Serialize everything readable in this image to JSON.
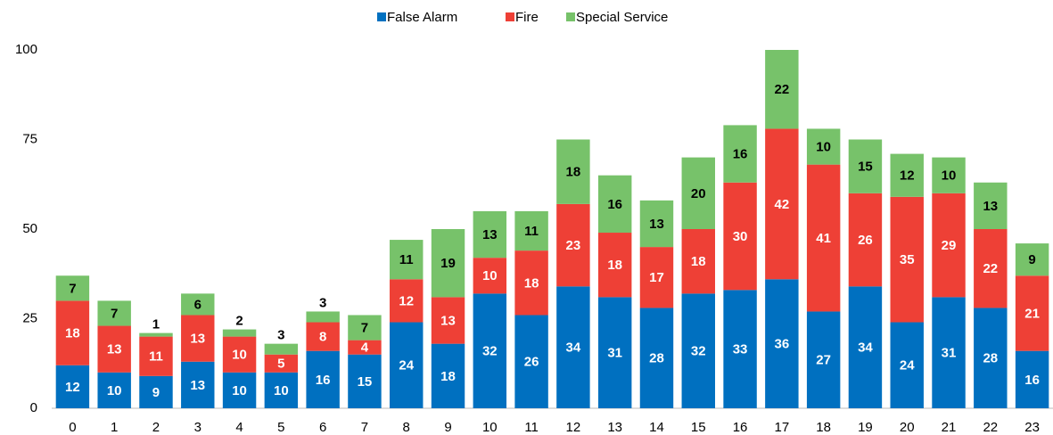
{
  "chart_data": {
    "type": "stacked_bar",
    "categories": [
      "0",
      "1",
      "2",
      "3",
      "4",
      "5",
      "6",
      "7",
      "8",
      "9",
      "10",
      "11",
      "12",
      "13",
      "14",
      "15",
      "16",
      "17",
      "18",
      "19",
      "20",
      "21",
      "22",
      "23"
    ],
    "series": [
      {
        "name": "False Alarm",
        "color": "#0070c0",
        "values": [
          12,
          10,
          9,
          13,
          10,
          10,
          16,
          15,
          24,
          18,
          32,
          26,
          34,
          31,
          28,
          32,
          33,
          36,
          27,
          34,
          24,
          31,
          28,
          16
        ]
      },
      {
        "name": "Fire",
        "color": "#ee4036",
        "values": [
          18,
          13,
          11,
          13,
          10,
          5,
          8,
          4,
          12,
          13,
          10,
          18,
          23,
          18,
          17,
          18,
          30,
          42,
          41,
          26,
          35,
          29,
          22,
          21
        ]
      },
      {
        "name": "Special Service",
        "color": "#77c26a",
        "values": [
          7,
          7,
          1,
          6,
          2,
          3,
          3,
          7,
          11,
          19,
          13,
          11,
          18,
          16,
          13,
          20,
          16,
          22,
          10,
          15,
          12,
          10,
          13,
          9
        ]
      }
    ],
    "ylim": [
      0,
      100
    ],
    "yticks": [
      0,
      25,
      50,
      75,
      100
    ],
    "legend": "top"
  }
}
